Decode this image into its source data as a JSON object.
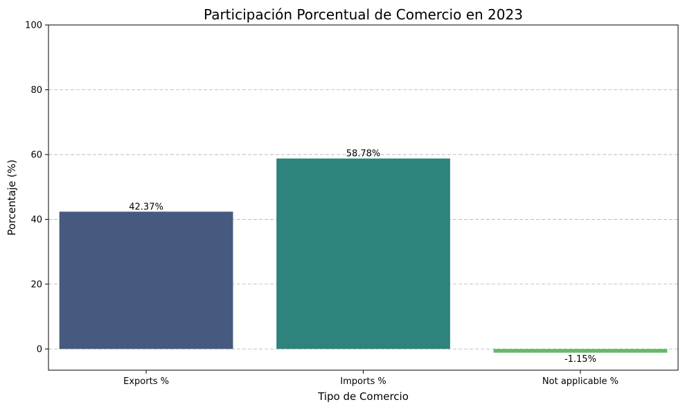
{
  "chart_data": {
    "type": "bar",
    "title": "Participación Porcentual de Comercio en 2023",
    "xlabel": "Tipo de Comercio",
    "ylabel": "Porcentaje (%)",
    "categories": [
      "Exports %",
      "Imports %",
      "Not applicable %"
    ],
    "values": [
      42.37,
      58.78,
      -1.15
    ],
    "value_labels": [
      "42.37%",
      "58.78%",
      "-1.15%"
    ],
    "colors": [
      "#46597f",
      "#2e837d",
      "#63b96a"
    ],
    "ylim": [
      -6.55,
      100
    ],
    "yticks": [
      0,
      20,
      40,
      60,
      80,
      100
    ],
    "grid": "y",
    "legend": "none"
  }
}
